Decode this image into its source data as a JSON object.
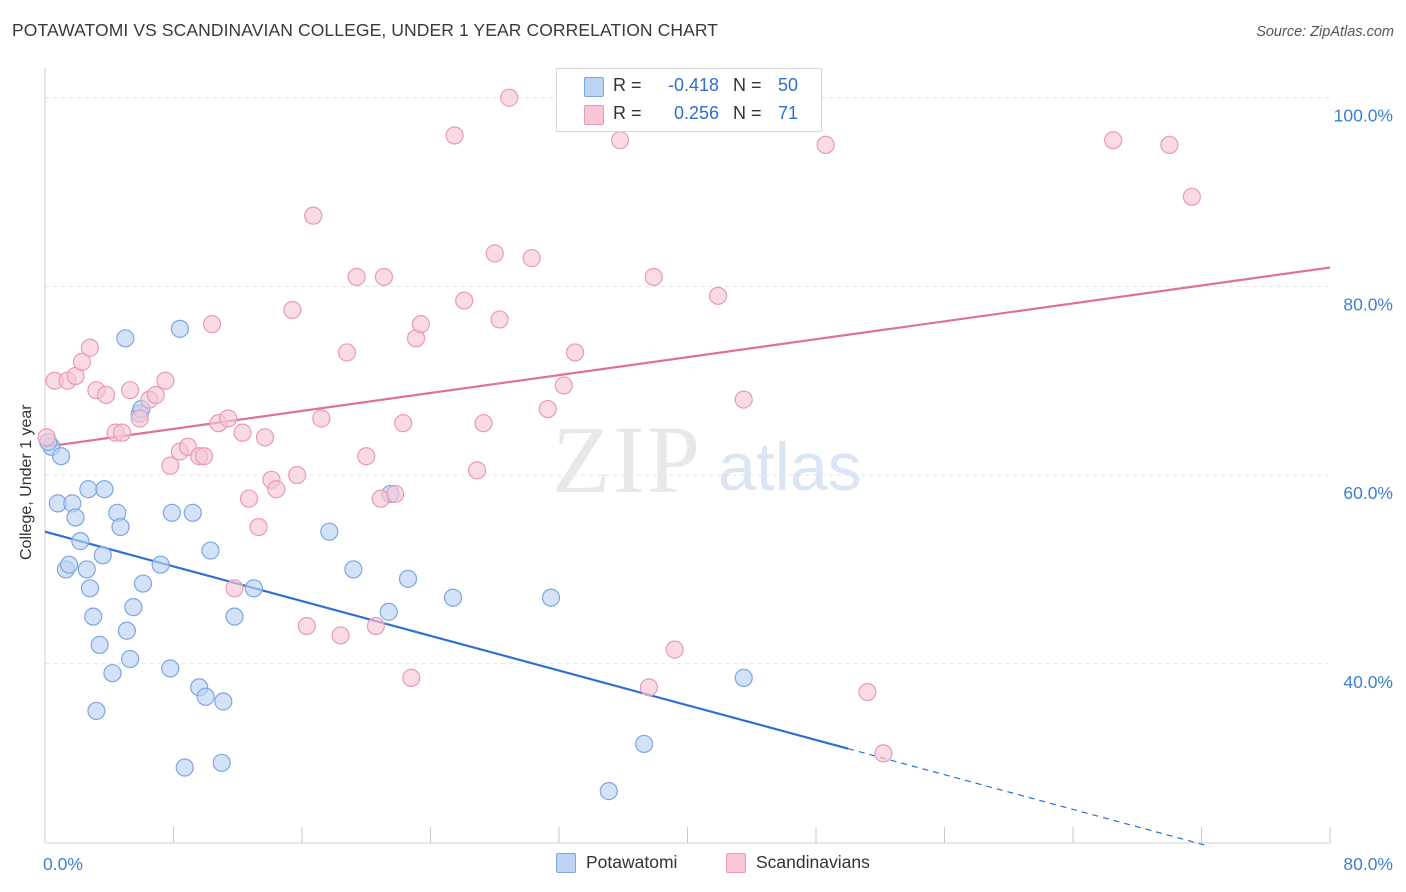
{
  "header": {
    "title": "POTAWATOMI VS SCANDINAVIAN COLLEGE, UNDER 1 YEAR CORRELATION CHART",
    "source": "Source: ZipAtlas.com"
  },
  "watermark": {
    "zip": "ZIP",
    "atlas": "atlas"
  },
  "colors": {
    "blue_fill": "#bcd3f3",
    "blue_stroke": "#7ea6e3",
    "blue_line": "#2e6fd0",
    "pink_fill": "#f8c6d6",
    "pink_stroke": "#ea9ab4",
    "pink_line": "#e07096",
    "axis_text": "#3d7fd6",
    "grid": "#e3e3e3"
  },
  "legend": {
    "rows": [
      {
        "r_label": "R =",
        "r_value": "-0.418",
        "n_label": "N =",
        "n_value": "50"
      },
      {
        "r_label": "R =",
        "r_value": "0.256",
        "n_label": "N =",
        "n_value": "71"
      }
    ]
  },
  "chart_data": {
    "type": "scatter",
    "xlabel": "",
    "ylabel": "College, Under 1 year",
    "xlim": [
      0,
      80
    ],
    "ylim": [
      21,
      104
    ],
    "x_tick_labels": [
      {
        "value": 0,
        "label": "0.0%"
      },
      {
        "value": 80,
        "label": "80.0%"
      }
    ],
    "x_minor_ticks": [
      0,
      8,
      16,
      24,
      32,
      40,
      48,
      56,
      64,
      72,
      80
    ],
    "y_ticks": [
      {
        "value": 40,
        "label": "40.0%"
      },
      {
        "value": 60,
        "label": "60.0%"
      },
      {
        "value": 80,
        "label": "80.0%"
      },
      {
        "value": 100,
        "label": "100.0%"
      }
    ],
    "grid": true,
    "series": [
      {
        "name": "Potawatomi",
        "color": "#7ea6e3",
        "trend": {
          "x0": 0,
          "y0": 54.0,
          "x1": 50,
          "y1": 31.0,
          "dash_to_x": 72.5
        },
        "points": [
          [
            0.4,
            63.0
          ],
          [
            1.0,
            62.0
          ],
          [
            0.8,
            57.0
          ],
          [
            1.7,
            57.0
          ],
          [
            1.9,
            55.5
          ],
          [
            2.2,
            53.0
          ],
          [
            2.7,
            58.5
          ],
          [
            3.7,
            58.5
          ],
          [
            4.5,
            56.0
          ],
          [
            4.7,
            54.5
          ],
          [
            1.3,
            50.0
          ],
          [
            1.5,
            50.5
          ],
          [
            2.6,
            50.0
          ],
          [
            3.6,
            51.5
          ],
          [
            2.8,
            48.0
          ],
          [
            3.0,
            45.0
          ],
          [
            5.5,
            46.0
          ],
          [
            6.1,
            48.5
          ],
          [
            5.1,
            43.5
          ],
          [
            3.4,
            42.0
          ],
          [
            5.3,
            40.5
          ],
          [
            4.2,
            39.0
          ],
          [
            7.8,
            39.5
          ],
          [
            3.2,
            35.0
          ],
          [
            9.6,
            37.5
          ],
          [
            10.0,
            36.5
          ],
          [
            11.1,
            36.0
          ],
          [
            11.0,
            29.5
          ],
          [
            8.7,
            29.0
          ],
          [
            7.9,
            56.0
          ],
          [
            9.2,
            56.0
          ],
          [
            10.3,
            52.0
          ],
          [
            11.8,
            45.0
          ],
          [
            13.0,
            48.0
          ],
          [
            7.2,
            50.5
          ],
          [
            8.4,
            75.5
          ],
          [
            5.0,
            74.5
          ],
          [
            5.9,
            66.5
          ],
          [
            6.0,
            67.0
          ],
          [
            17.7,
            54.0
          ],
          [
            19.2,
            50.0
          ],
          [
            21.5,
            58.0
          ],
          [
            21.4,
            45.5
          ],
          [
            22.6,
            49.0
          ],
          [
            25.4,
            47.0
          ],
          [
            31.5,
            47.0
          ],
          [
            35.1,
            26.5
          ],
          [
            37.3,
            31.5
          ],
          [
            43.5,
            38.5
          ],
          [
            0.2,
            63.5
          ]
        ]
      },
      {
        "name": "Scandinavians",
        "color": "#ea9ab4",
        "trend": {
          "x0": 0,
          "y0": 63.0,
          "x1": 80,
          "y1": 82.0
        },
        "points": [
          [
            0.1,
            64.0
          ],
          [
            0.6,
            70.0
          ],
          [
            1.4,
            70.0
          ],
          [
            1.9,
            70.5
          ],
          [
            2.3,
            72.0
          ],
          [
            2.8,
            73.5
          ],
          [
            3.2,
            69.0
          ],
          [
            3.8,
            68.5
          ],
          [
            4.4,
            64.5
          ],
          [
            4.8,
            64.5
          ],
          [
            5.3,
            69.0
          ],
          [
            5.9,
            66.0
          ],
          [
            6.5,
            68.0
          ],
          [
            6.9,
            68.5
          ],
          [
            7.5,
            70.0
          ],
          [
            7.8,
            61.0
          ],
          [
            8.4,
            62.5
          ],
          [
            8.9,
            63.0
          ],
          [
            9.6,
            62.0
          ],
          [
            9.9,
            62.0
          ],
          [
            10.4,
            76.0
          ],
          [
            10.8,
            65.5
          ],
          [
            11.4,
            66.0
          ],
          [
            11.8,
            48.0
          ],
          [
            12.3,
            64.5
          ],
          [
            12.7,
            57.5
          ],
          [
            13.3,
            54.5
          ],
          [
            13.7,
            64.0
          ],
          [
            14.1,
            59.5
          ],
          [
            14.4,
            58.5
          ],
          [
            15.4,
            77.5
          ],
          [
            15.7,
            60.0
          ],
          [
            16.3,
            44.0
          ],
          [
            16.7,
            87.5
          ],
          [
            17.2,
            66.0
          ],
          [
            18.4,
            43.0
          ],
          [
            18.8,
            73.0
          ],
          [
            19.4,
            81.0
          ],
          [
            20.0,
            62.0
          ],
          [
            20.6,
            44.0
          ],
          [
            20.9,
            57.5
          ],
          [
            21.1,
            81.0
          ],
          [
            21.8,
            58.0
          ],
          [
            22.3,
            65.5
          ],
          [
            22.8,
            38.5
          ],
          [
            23.1,
            74.5
          ],
          [
            23.4,
            76.0
          ],
          [
            25.5,
            96.0
          ],
          [
            26.1,
            78.5
          ],
          [
            26.9,
            60.5
          ],
          [
            27.3,
            65.5
          ],
          [
            28.0,
            83.5
          ],
          [
            28.3,
            76.5
          ],
          [
            28.9,
            100.0
          ],
          [
            30.3,
            83.0
          ],
          [
            31.3,
            67.0
          ],
          [
            32.3,
            69.5
          ],
          [
            33.0,
            73.0
          ],
          [
            35.8,
            95.5
          ],
          [
            37.6,
            37.5
          ],
          [
            37.9,
            81.0
          ],
          [
            39.2,
            41.5
          ],
          [
            41.9,
            79.0
          ],
          [
            43.5,
            68.0
          ],
          [
            47.3,
            100.0
          ],
          [
            48.6,
            95.0
          ],
          [
            51.2,
            37.0
          ],
          [
            52.2,
            30.5
          ],
          [
            66.5,
            95.5
          ],
          [
            70.0,
            95.0
          ],
          [
            71.4,
            89.5
          ]
        ]
      }
    ]
  }
}
